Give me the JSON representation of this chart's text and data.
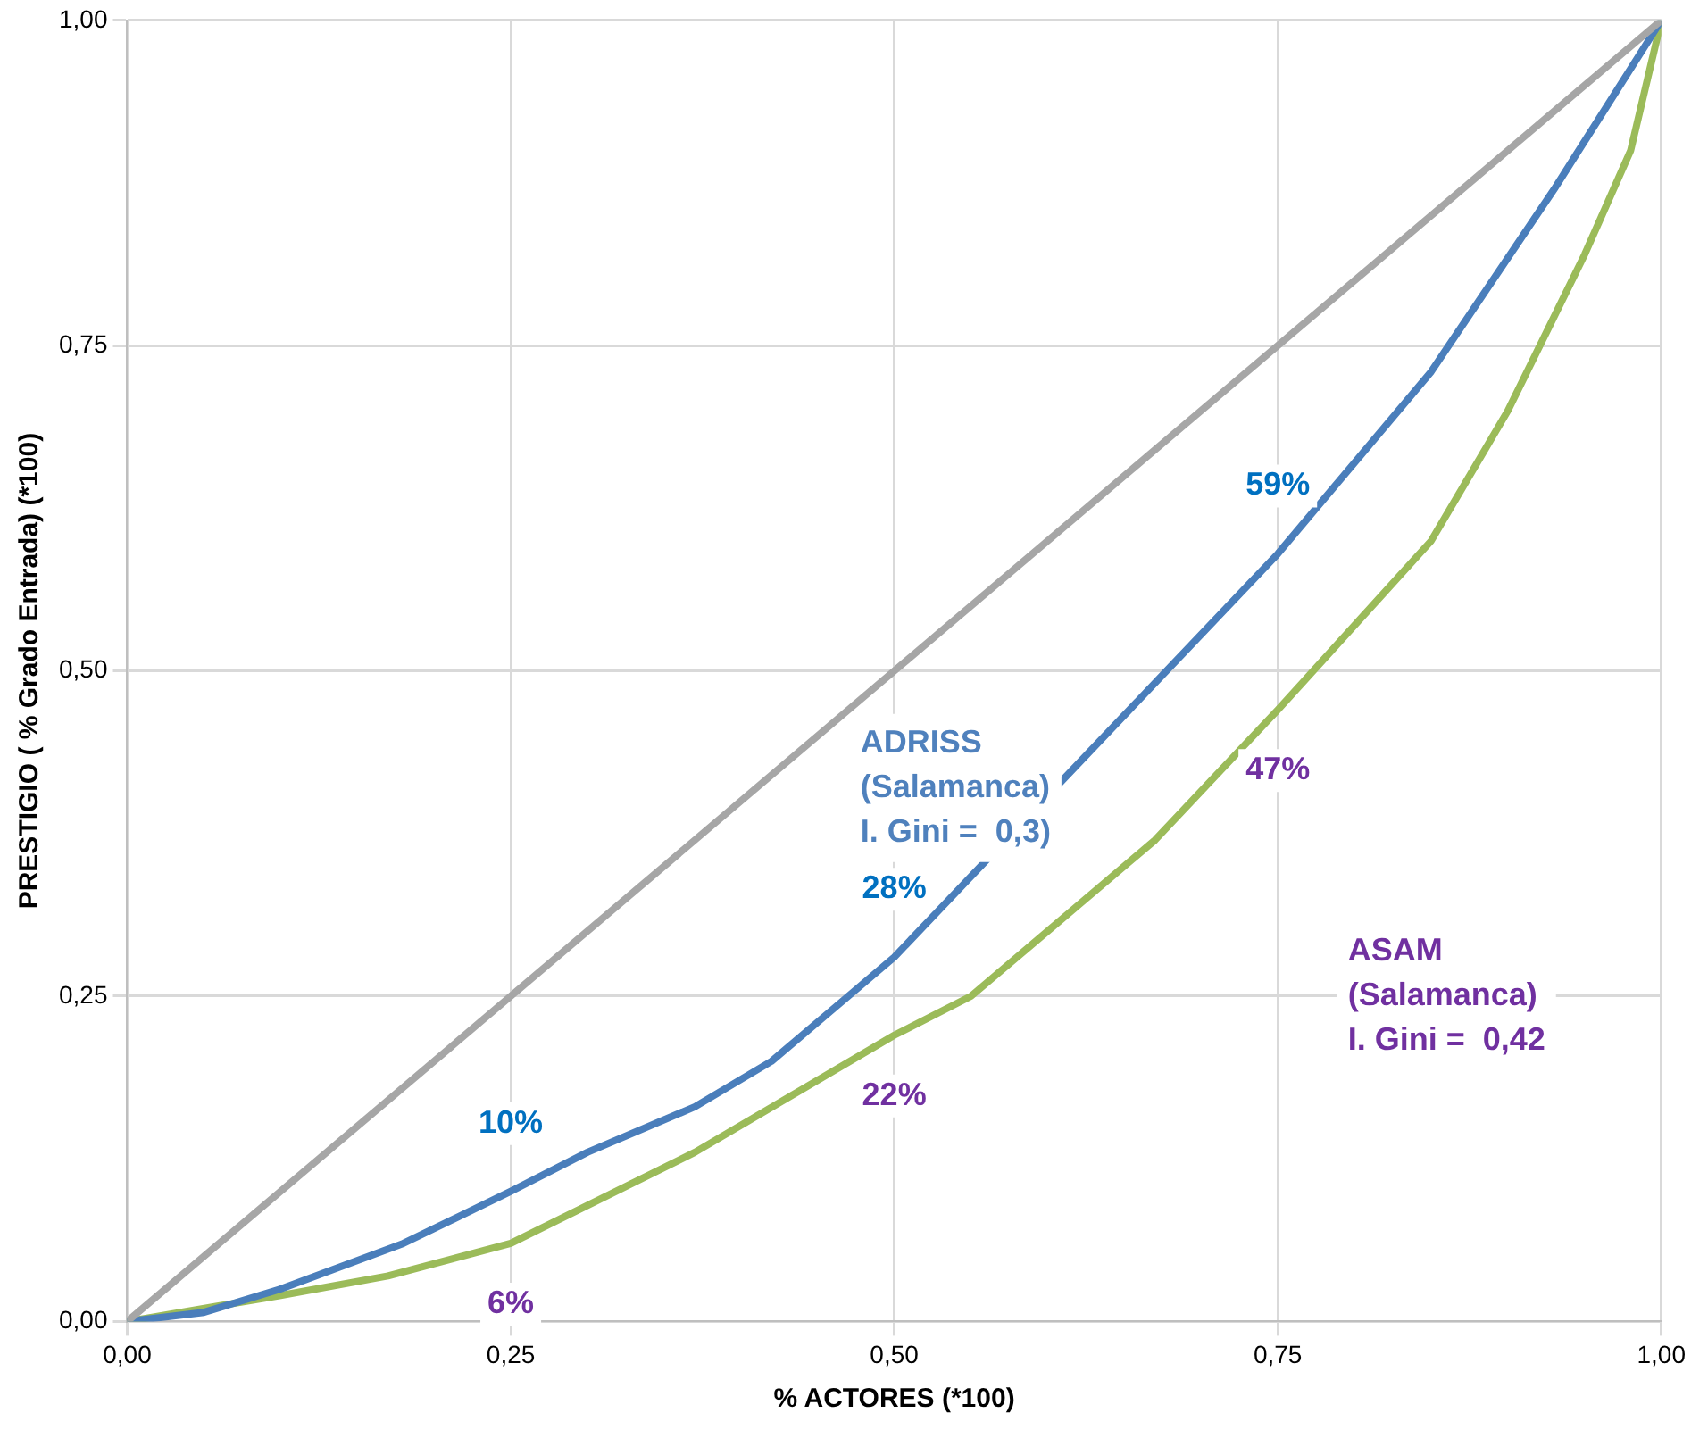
{
  "chart_data": {
    "type": "line",
    "xlabel": "% ACTORES (*100)",
    "ylabel": "PRESTIGIO ( % Grado Entrada) (*100)",
    "xlim": [
      0,
      1
    ],
    "ylim": [
      0,
      1
    ],
    "xticks": [
      {
        "value": 0,
        "label": "0,00"
      },
      {
        "value": 0.25,
        "label": "0,25"
      },
      {
        "value": 0.5,
        "label": "0,50"
      },
      {
        "value": 0.75,
        "label": "0,75"
      },
      {
        "value": 1,
        "label": "1,00"
      }
    ],
    "yticks": [
      {
        "value": 0,
        "label": "0,00"
      },
      {
        "value": 0.25,
        "label": "0,25"
      },
      {
        "value": 0.5,
        "label": "0,50"
      },
      {
        "value": 0.75,
        "label": "0,75"
      },
      {
        "value": 1,
        "label": "1,00"
      }
    ],
    "grid": true,
    "legend": false,
    "marker": "none",
    "line_style": "solid",
    "series": [
      {
        "color": "#a6a6a6",
        "x": [
          0,
          1
        ],
        "values": [
          0,
          1
        ]
      },
      {
        "color": "#4a7ebb",
        "x": [
          0,
          0.05,
          0.1,
          0.18,
          0.25,
          0.3,
          0.37,
          0.42,
          0.47,
          0.5,
          0.75,
          0.85,
          0.93,
          1
        ],
        "values": [
          0,
          0.007,
          0.025,
          0.06,
          0.1,
          0.13,
          0.165,
          0.2,
          0.25,
          0.28,
          0.59,
          0.73,
          0.87,
          1
        ],
        "value_labels": [
          null,
          null,
          null,
          null,
          "10%",
          null,
          null,
          null,
          null,
          "28%",
          "59%",
          null,
          null,
          null
        ]
      },
      {
        "color": "#9bbb59",
        "x": [
          0,
          0.1,
          0.17,
          0.25,
          0.37,
          0.5,
          0.55,
          0.6,
          0.67,
          0.75,
          0.85,
          0.9,
          0.95,
          0.98,
          1
        ],
        "values": [
          0,
          0.02,
          0.035,
          0.06,
          0.13,
          0.22,
          0.25,
          0.3,
          0.37,
          0.47,
          0.6,
          0.7,
          0.82,
          0.9,
          1
        ],
        "value_labels": [
          null,
          null,
          null,
          "6%",
          null,
          "22%",
          null,
          null,
          null,
          "47%",
          null,
          null,
          null,
          null,
          null
        ]
      }
    ],
    "annotations": [
      "ADRISS\n(Salamanca)\nI. Gini =  0,3)",
      "ASAM\n(Salamanca)\nI. Gini =  0,42"
    ]
  }
}
